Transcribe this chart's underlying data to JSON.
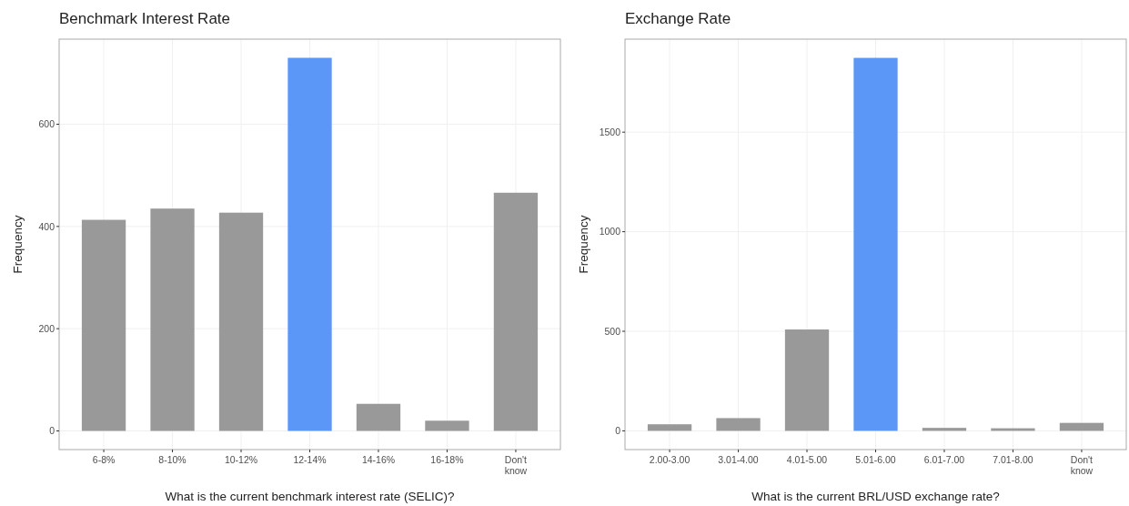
{
  "chart_data": [
    {
      "type": "bar",
      "title": "Benchmark Interest Rate",
      "xlabel": "What is the current benchmark interest rate (SELIC)?",
      "ylabel": "Frequency",
      "categories": [
        "6-8%",
        "8-10%",
        "10-12%",
        "12-14%",
        "14-16%",
        "16-18%",
        "Don't know"
      ],
      "values": [
        413,
        435,
        427,
        730,
        53,
        20,
        466
      ],
      "colors": [
        "#999999",
        "#999999",
        "#999999",
        "#5b97f7",
        "#999999",
        "#999999",
        "#999999"
      ],
      "ylim": [
        -36.5,
        766.5
      ],
      "yticks": [
        0,
        200,
        400,
        600
      ],
      "grid": true
    },
    {
      "type": "bar",
      "title": "Exchange Rate",
      "xlabel": "What is the current BRL/USD exchange rate?",
      "ylabel": "Frequency",
      "categories": [
        "2.00-3.00",
        "3.01-4.00",
        "4.01-5.00",
        "5.01-6.00",
        "6.01-7.00",
        "7.01-8.00",
        "Don't know"
      ],
      "values": [
        33,
        64,
        509,
        1873,
        15,
        13,
        40
      ],
      "colors": [
        "#999999",
        "#999999",
        "#999999",
        "#5b97f7",
        "#999999",
        "#999999",
        "#999999"
      ],
      "ylim": [
        -94,
        1967
      ],
      "yticks": [
        0,
        500,
        1000,
        1500
      ],
      "grid": true
    }
  ]
}
